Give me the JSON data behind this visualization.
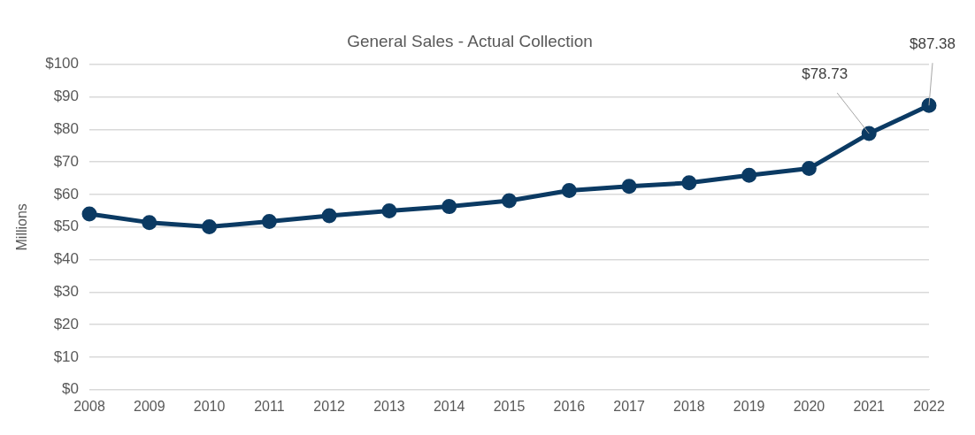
{
  "chart_data": {
    "type": "line",
    "title": "General Sales - Actual Collection",
    "ylabel": "Millions",
    "categories": [
      "2008",
      "2009",
      "2010",
      "2011",
      "2012",
      "2013",
      "2014",
      "2015",
      "2016",
      "2017",
      "2018",
      "2019",
      "2020",
      "2021",
      "2022"
    ],
    "series": [
      {
        "color": "#0b3a63",
        "values": [
          54.0,
          51.4,
          50.1,
          51.7,
          53.5,
          55.0,
          56.3,
          58.1,
          61.2,
          62.5,
          63.6,
          65.9,
          68.0,
          78.73,
          87.38
        ],
        "value_labels": [
          null,
          null,
          null,
          null,
          null,
          null,
          null,
          null,
          null,
          null,
          null,
          null,
          null,
          "$78.73",
          "$87.38"
        ]
      }
    ],
    "ylim": [
      0,
      100
    ],
    "yticks": [
      {
        "value": 0,
        "label": "$0"
      },
      {
        "value": 10,
        "label": "$10"
      },
      {
        "value": 20,
        "label": "$20"
      },
      {
        "value": 30,
        "label": "$30"
      },
      {
        "value": 40,
        "label": "$40"
      },
      {
        "value": 50,
        "label": "$50"
      },
      {
        "value": 60,
        "label": "$60"
      },
      {
        "value": 70,
        "label": "$70"
      },
      {
        "value": 80,
        "label": "$80"
      },
      {
        "value": 90,
        "label": "$90"
      },
      {
        "value": 100,
        "label": "$100"
      }
    ],
    "grid": "y",
    "legend": false,
    "marker": "circle",
    "line_style": "solid"
  }
}
